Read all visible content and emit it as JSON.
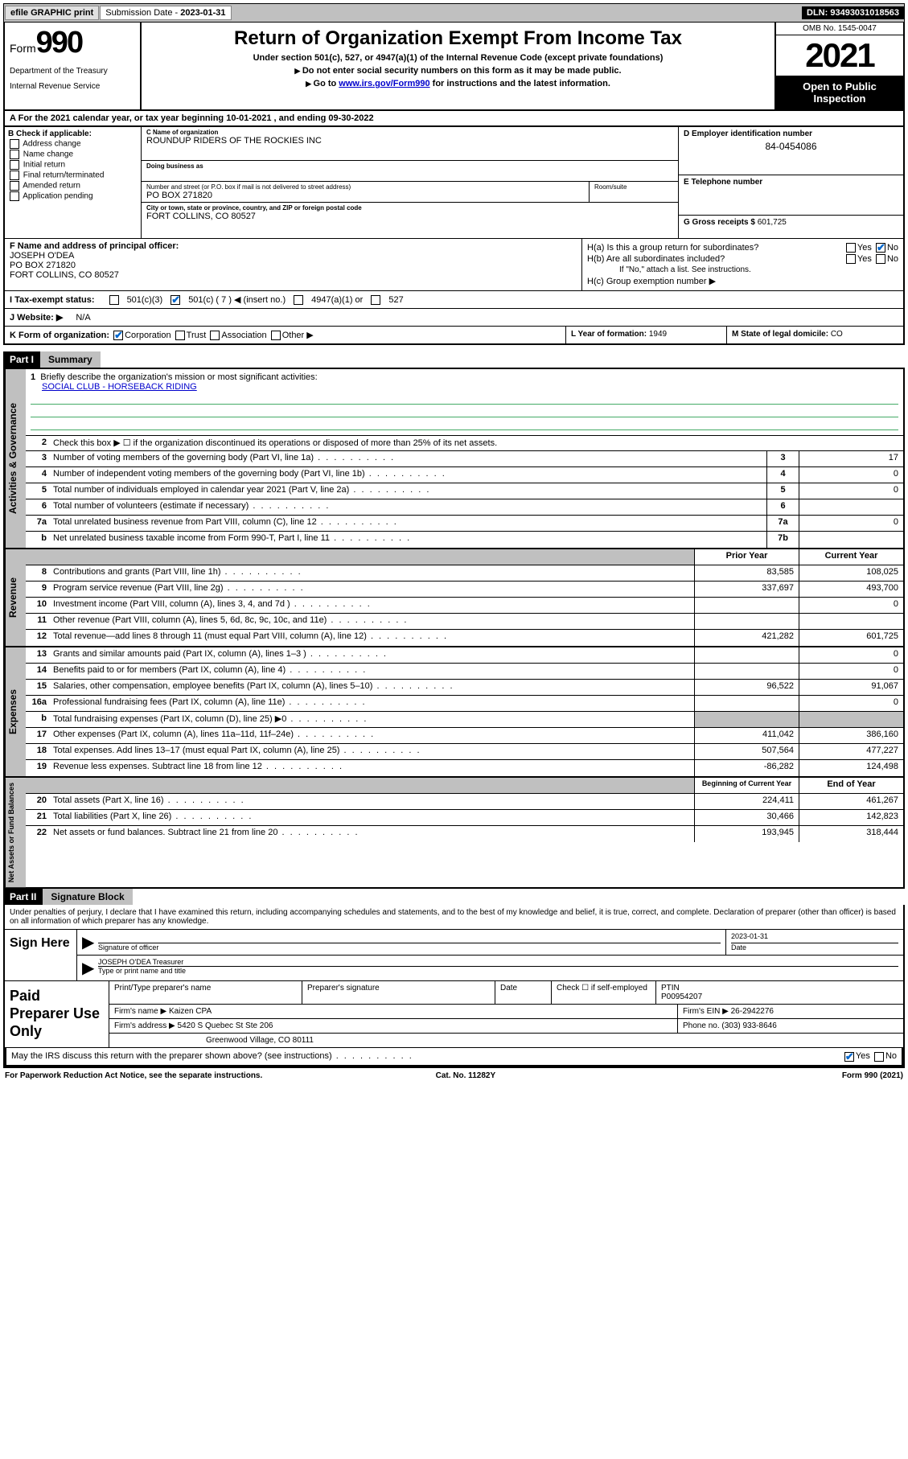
{
  "topbar": {
    "efile": "efile GRAPHIC print",
    "submission_label": "Submission Date - ",
    "submission_date": "2023-01-31",
    "dln_label": "DLN: ",
    "dln": "93493031018563"
  },
  "header": {
    "form_prefix": "Form",
    "form_num": "990",
    "dept": "Department of the Treasury",
    "irs": "Internal Revenue Service",
    "title": "Return of Organization Exempt From Income Tax",
    "sub1": "Under section 501(c), 527, or 4947(a)(1) of the Internal Revenue Code (except private foundations)",
    "sub2": "Do not enter social security numbers on this form as it may be made public.",
    "sub3_prefix": "Go to ",
    "sub3_link": "www.irs.gov/Form990",
    "sub3_suffix": " for instructions and the latest information.",
    "omb": "OMB No. 1545-0047",
    "year": "2021",
    "open_public": "Open to Public Inspection"
  },
  "rowA": "For the 2021 calendar year, or tax year beginning 10-01-2021   , and ending 09-30-2022",
  "sectionB": {
    "title": "B Check if applicable:",
    "items": [
      "Address change",
      "Name change",
      "Initial return",
      "Final return/terminated",
      "Amended return",
      "Application pending"
    ]
  },
  "sectionC": {
    "name_label": "C Name of organization",
    "name": "ROUNDUP RIDERS OF THE ROCKIES INC",
    "dba_label": "Doing business as",
    "dba": "",
    "street_label": "Number and street (or P.O. box if mail is not delivered to street address)",
    "room_label": "Room/suite",
    "street": "PO BOX 271820",
    "city_label": "City or town, state or province, country, and ZIP or foreign postal code",
    "city": "FORT COLLINS, CO  80527"
  },
  "sectionD": {
    "label": "D Employer identification number",
    "value": "84-0454086"
  },
  "sectionE": {
    "label": "E Telephone number",
    "value": ""
  },
  "sectionG": {
    "label": "G Gross receipts $ ",
    "value": "601,725"
  },
  "sectionF": {
    "label": "F Name and address of principal officer:",
    "name": "JOSEPH O'DEA",
    "street": "PO BOX 271820",
    "city": "FORT COLLINS, CO  80527"
  },
  "sectionH": {
    "ha": "H(a)  Is this a group return for subordinates?",
    "hb": "H(b)  Are all subordinates included?",
    "hb_note": "If \"No,\" attach a list. See instructions.",
    "hc": "H(c)  Group exemption number ▶"
  },
  "rowI": {
    "label": "I   Tax-exempt status:",
    "opts": [
      "501(c)(3)",
      "501(c) ( 7 ) ◀ (insert no.)",
      "4947(a)(1) or",
      "527"
    ]
  },
  "rowJ": {
    "label": "J   Website: ▶",
    "value": "N/A"
  },
  "rowK": {
    "label": "K Form of organization:",
    "opts": [
      "Corporation",
      "Trust",
      "Association",
      "Other ▶"
    ]
  },
  "rowL": {
    "label": "L Year of formation: ",
    "value": "1949"
  },
  "rowM": {
    "label": "M State of legal domicile: ",
    "value": "CO"
  },
  "part1": {
    "hdr": "Part I",
    "title": "Summary"
  },
  "p1_1": {
    "n": "1",
    "d": "Briefly describe the organization's mission or most significant activities:",
    "mission": "SOCIAL CLUB - HORSEBACK RIDING"
  },
  "p1_2": {
    "n": "2",
    "d": "Check this box ▶ ☐ if the organization discontinued its operations or disposed of more than 25% of its net assets."
  },
  "governance_label": "Activities & Governance",
  "gov_rows": [
    {
      "n": "3",
      "d": "Number of voting members of the governing body (Part VI, line 1a)",
      "nb": "3",
      "v": "17"
    },
    {
      "n": "4",
      "d": "Number of independent voting members of the governing body (Part VI, line 1b)",
      "nb": "4",
      "v": "0"
    },
    {
      "n": "5",
      "d": "Total number of individuals employed in calendar year 2021 (Part V, line 2a)",
      "nb": "5",
      "v": "0"
    },
    {
      "n": "6",
      "d": "Total number of volunteers (estimate if necessary)",
      "nb": "6",
      "v": ""
    },
    {
      "n": "7a",
      "d": "Total unrelated business revenue from Part VIII, column (C), line 12",
      "nb": "7a",
      "v": "0"
    },
    {
      "n": "b",
      "d": "Net unrelated business taxable income from Form 990-T, Part I, line 11",
      "nb": "7b",
      "v": ""
    }
  ],
  "revenue_label": "Revenue",
  "col_headers": {
    "prior": "Prior Year",
    "current": "Current Year"
  },
  "rev_rows": [
    {
      "n": "8",
      "d": "Contributions and grants (Part VIII, line 1h)",
      "p": "83,585",
      "c": "108,025"
    },
    {
      "n": "9",
      "d": "Program service revenue (Part VIII, line 2g)",
      "p": "337,697",
      "c": "493,700"
    },
    {
      "n": "10",
      "d": "Investment income (Part VIII, column (A), lines 3, 4, and 7d )",
      "p": "",
      "c": "0"
    },
    {
      "n": "11",
      "d": "Other revenue (Part VIII, column (A), lines 5, 6d, 8c, 9c, 10c, and 11e)",
      "p": "",
      "c": ""
    },
    {
      "n": "12",
      "d": "Total revenue—add lines 8 through 11 (must equal Part VIII, column (A), line 12)",
      "p": "421,282",
      "c": "601,725"
    }
  ],
  "expenses_label": "Expenses",
  "exp_rows": [
    {
      "n": "13",
      "d": "Grants and similar amounts paid (Part IX, column (A), lines 1–3 )",
      "p": "",
      "c": "0"
    },
    {
      "n": "14",
      "d": "Benefits paid to or for members (Part IX, column (A), line 4)",
      "p": "",
      "c": "0"
    },
    {
      "n": "15",
      "d": "Salaries, other compensation, employee benefits (Part IX, column (A), lines 5–10)",
      "p": "96,522",
      "c": "91,067"
    },
    {
      "n": "16a",
      "d": "Professional fundraising fees (Part IX, column (A), line 11e)",
      "p": "",
      "c": "0"
    },
    {
      "n": "b",
      "d": "Total fundraising expenses (Part IX, column (D), line 25) ▶0",
      "p": "",
      "c": "",
      "shade": true
    },
    {
      "n": "17",
      "d": "Other expenses (Part IX, column (A), lines 11a–11d, 11f–24e)",
      "p": "411,042",
      "c": "386,160"
    },
    {
      "n": "18",
      "d": "Total expenses. Add lines 13–17 (must equal Part IX, column (A), line 25)",
      "p": "507,564",
      "c": "477,227"
    },
    {
      "n": "19",
      "d": "Revenue less expenses. Subtract line 18 from line 12",
      "p": "-86,282",
      "c": "124,498"
    }
  ],
  "net_label": "Net Assets or Fund Balances",
  "net_headers": {
    "begin": "Beginning of Current Year",
    "end": "End of Year"
  },
  "net_rows": [
    {
      "n": "20",
      "d": "Total assets (Part X, line 16)",
      "p": "224,411",
      "c": "461,267"
    },
    {
      "n": "21",
      "d": "Total liabilities (Part X, line 26)",
      "p": "30,466",
      "c": "142,823"
    },
    {
      "n": "22",
      "d": "Net assets or fund balances. Subtract line 21 from line 20",
      "p": "193,945",
      "c": "318,444"
    }
  ],
  "part2": {
    "hdr": "Part II",
    "title": "Signature Block"
  },
  "sig": {
    "declaration": "Under penalties of perjury, I declare that I have examined this return, including accompanying schedules and statements, and to the best of my knowledge and belief, it is true, correct, and complete. Declaration of preparer (other than officer) is based on all information of which preparer has any knowledge.",
    "sign_here": "Sign Here",
    "sig_officer": "Signature of officer",
    "date_label": "Date",
    "date": "2023-01-31",
    "name_title": "JOSEPH O'DEA  Treasurer",
    "type_label": "Type or print name and title"
  },
  "prep": {
    "title": "Paid Preparer Use Only",
    "h1": "Print/Type preparer's name",
    "h2": "Preparer's signature",
    "h3": "Date",
    "h4_check": "Check ☐ if self-employed",
    "h5": "PTIN",
    "ptin": "P00954207",
    "firm_name_label": "Firm's name      ▶ ",
    "firm_name": "Kaizen CPA",
    "firm_ein_label": "Firm's EIN ▶ ",
    "firm_ein": "26-2942276",
    "firm_addr_label": "Firm's address ▶ ",
    "firm_addr1": "5420 S Quebec St Ste 206",
    "firm_addr2": "Greenwood Village, CO  80111",
    "phone_label": "Phone no. ",
    "phone": "(303) 933-8646"
  },
  "may_discuss": "May the IRS discuss this return with the preparer shown above? (see instructions)",
  "footer": {
    "pra": "For Paperwork Reduction Act Notice, see the separate instructions.",
    "cat": "Cat. No. 11282Y",
    "form": "Form 990 (2021)"
  },
  "yesno": {
    "yes": "Yes",
    "no": "No"
  }
}
